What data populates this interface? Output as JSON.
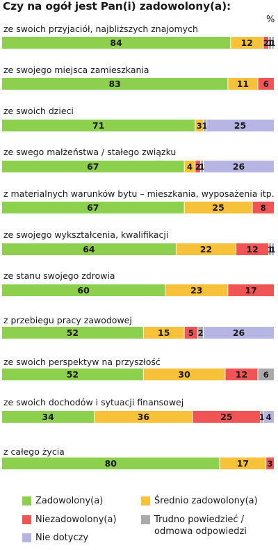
{
  "chart_data": {
    "type": "bar",
    "orientation": "horizontal",
    "stacked": true,
    "title": "Czy na ogół jest Pan(i) zadowolony(a):",
    "unit": "%",
    "xlim": [
      0,
      100
    ],
    "categories": [
      "ze swoich przyjaciół, najbliższych znajomych",
      "ze swojego miejsca zamieszkania",
      "ze swoich dzieci",
      "ze swego małżeństwa / stałego związku",
      "z materialnych warunków bytu – mieszkania, wyposażenia itp.",
      "ze swojego wykształcenia, kwalifikacji",
      "ze stanu swojego zdrowia",
      "z przebiegu pracy zawodowej",
      "ze swoich perspektyw na przyszłość",
      "ze swoich dochodów i sytuacji finansowej",
      "z całego życia"
    ],
    "series": [
      {
        "name": "Zadowolony(a)",
        "color": "#8cd04e",
        "values": [
          84,
          83,
          71,
          67,
          67,
          64,
          60,
          52,
          52,
          34,
          80
        ]
      },
      {
        "name": "Średnio zadowolony(a)",
        "color": "#f7c13a",
        "values": [
          12,
          11,
          3,
          4,
          25,
          22,
          23,
          15,
          30,
          36,
          17
        ]
      },
      {
        "name": "Niezadowolony(a)",
        "color": "#f05454",
        "values": [
          2,
          6,
          0,
          2,
          8,
          12,
          17,
          5,
          12,
          25,
          3
        ]
      },
      {
        "name": "Trudno powiedzieć / odmowa odpowiedzi",
        "color": "#aaaaaa",
        "values": [
          1,
          0,
          1,
          1,
          0,
          1,
          0,
          2,
          6,
          1,
          0
        ]
      },
      {
        "name": "Nie dotyczy",
        "color": "#b6b5e3",
        "values": [
          1,
          0,
          25,
          26,
          0,
          1,
          0,
          26,
          0,
          4,
          0
        ]
      }
    ]
  },
  "legend": [
    {
      "label": "Zadowolony(a)",
      "color": "#8cd04e"
    },
    {
      "label": "Średnio zadowolony(a)",
      "color": "#f7c13a"
    },
    {
      "label": "Niezadowolony(a)",
      "color": "#f05454"
    },
    {
      "label": "Trudno powiedzieć /\nodmowa odpowiedzi",
      "color": "#aaaaaa"
    },
    {
      "label": "Nie dotyczy",
      "color": "#b6b5e3"
    }
  ]
}
